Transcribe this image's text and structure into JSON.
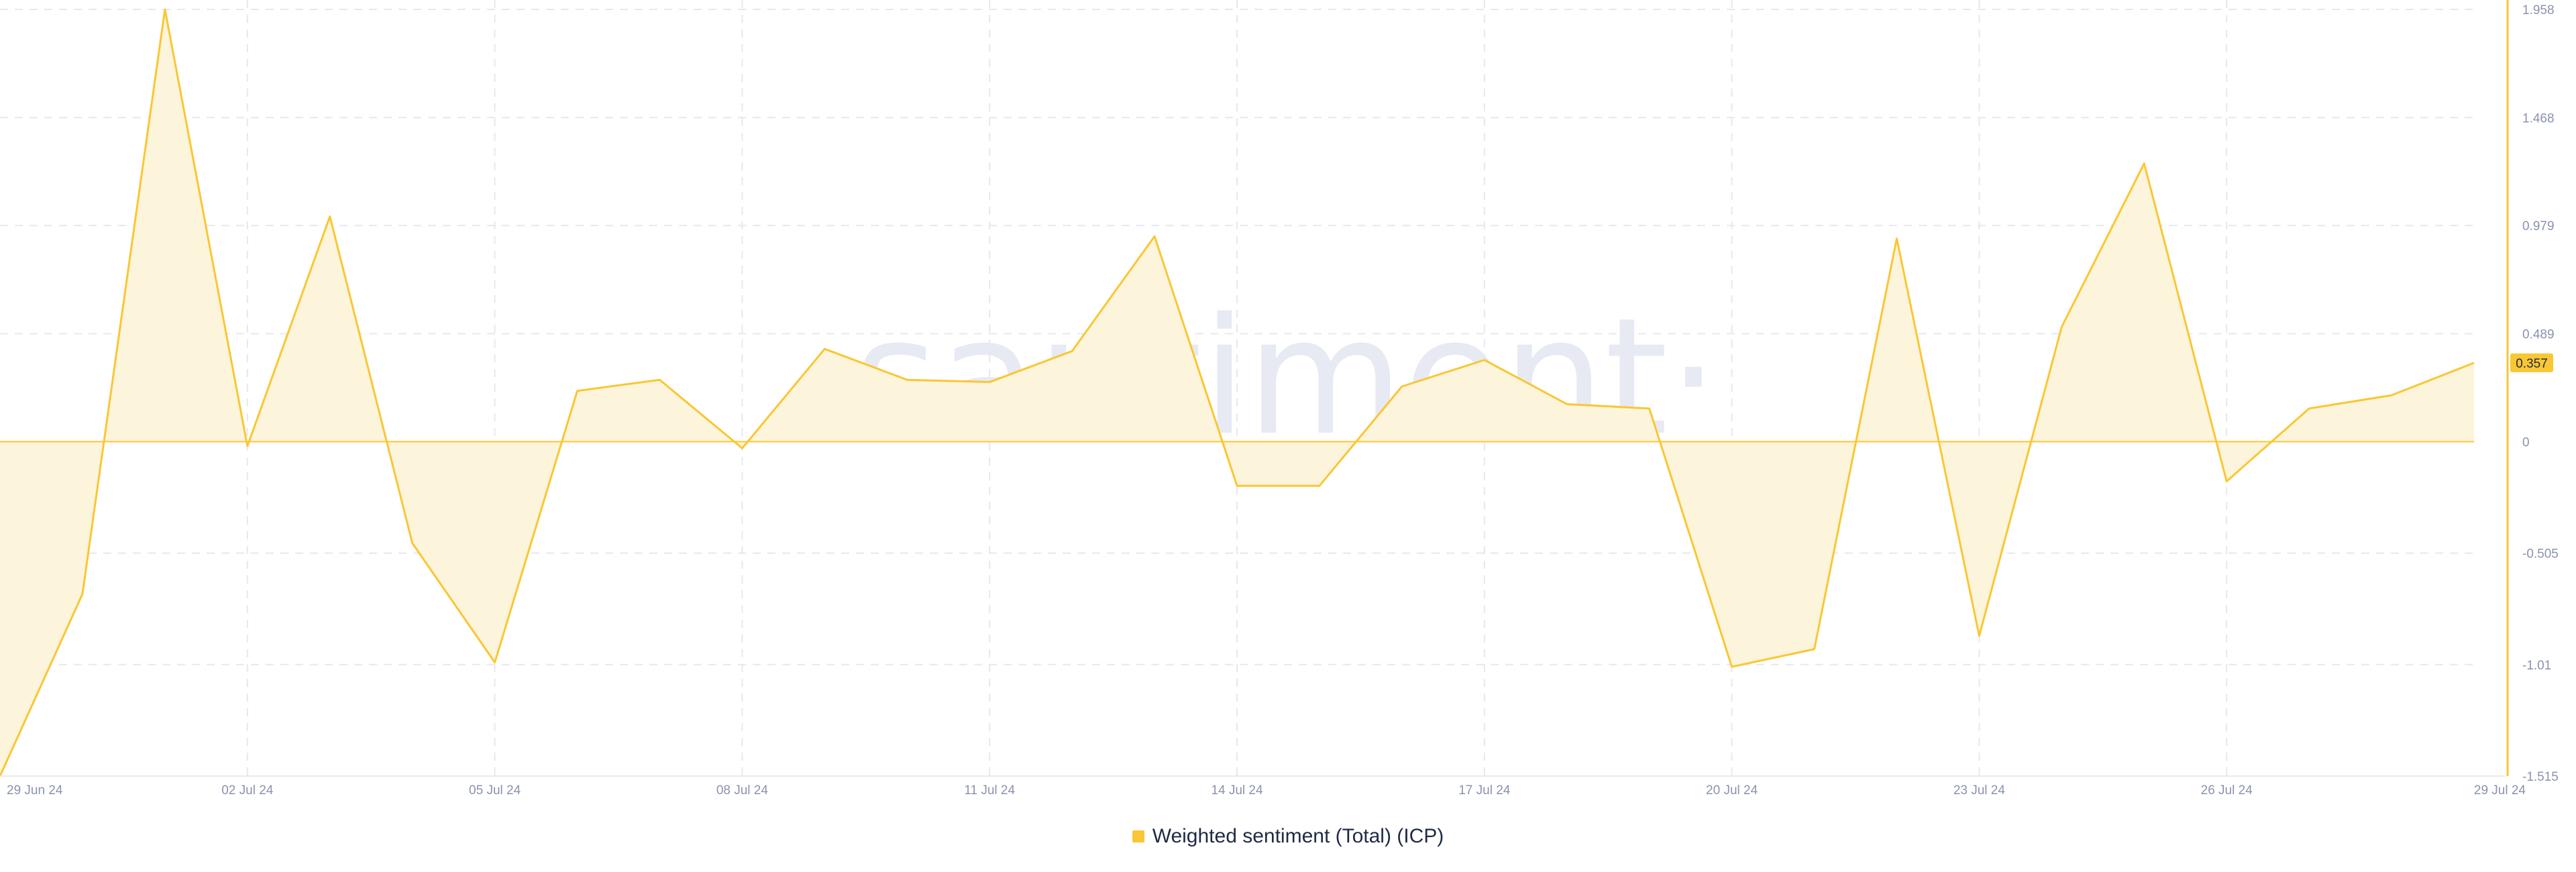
{
  "watermark": "·santiment·",
  "legend": {
    "label": "Weighted sentiment (Total) (ICP)"
  },
  "colors": {
    "series": "#f9c733",
    "fill": "#fdf4dc",
    "grid": "#e6e8ef",
    "axis_text": "#8a93ad",
    "badge_bg": "#f9c733"
  },
  "chart_data": {
    "type": "area",
    "x": [
      "29 Jun 24",
      "30 Jun 24",
      "01 Jul 24",
      "02 Jul 24",
      "03 Jul 24",
      "04 Jul 24",
      "05 Jul 24",
      "06 Jul 24",
      "07 Jul 24",
      "08 Jul 24",
      "09 Jul 24",
      "10 Jul 24",
      "11 Jul 24",
      "12 Jul 24",
      "13 Jul 24",
      "14 Jul 24",
      "15 Jul 24",
      "16 Jul 24",
      "17 Jul 24",
      "18 Jul 24",
      "19 Jul 24",
      "20 Jul 24",
      "21 Jul 24",
      "22 Jul 24",
      "23 Jul 24",
      "24 Jul 24",
      "25 Jul 24",
      "26 Jul 24",
      "27 Jul 24",
      "28 Jul 24",
      "29 Jul 24"
    ],
    "series": [
      {
        "name": "Weighted sentiment (Total) (ICP)",
        "values": [
          -1.515,
          -0.69,
          1.958,
          -0.02,
          1.02,
          -0.46,
          -1.0,
          0.23,
          0.28,
          -0.03,
          0.42,
          0.28,
          0.27,
          0.41,
          0.93,
          -0.2,
          -0.2,
          0.25,
          0.37,
          0.17,
          0.15,
          -1.02,
          -0.94,
          0.92,
          -0.88,
          0.52,
          1.26,
          -0.18,
          0.15,
          0.21,
          0.357
        ]
      }
    ],
    "x_tick_labels": [
      "29 Jun 24",
      "02 Jul 24",
      "05 Jul 24",
      "08 Jul 24",
      "11 Jul 24",
      "14 Jul 24",
      "17 Jul 24",
      "20 Jul 24",
      "23 Jul 24",
      "26 Jul 24",
      "29 Jul 24"
    ],
    "y_tick_labels": [
      "1.958",
      "1.468",
      "0.979",
      "0.489",
      "0",
      "-0.505",
      "-1.01",
      "-1.515"
    ],
    "y_ticks": [
      1.958,
      1.468,
      0.979,
      0.489,
      0,
      -0.505,
      -1.01,
      -1.515
    ],
    "ylim": [
      -1.515,
      1.958
    ],
    "last_value_label": "0.357",
    "grid": true,
    "legend_position": "bottom"
  }
}
